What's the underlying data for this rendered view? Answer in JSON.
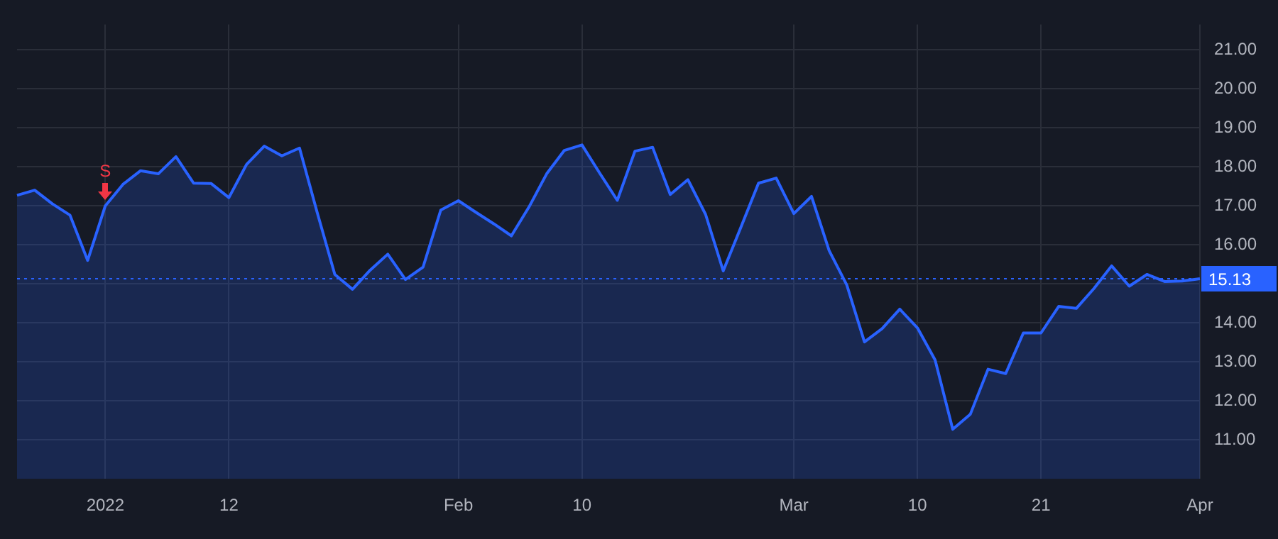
{
  "chart_data": {
    "type": "area",
    "categories": [
      null,
      null,
      null,
      null,
      null,
      "2022",
      null,
      null,
      null,
      null,
      null,
      null,
      "12",
      null,
      null,
      null,
      null,
      null,
      null,
      null,
      null,
      null,
      null,
      null,
      null,
      "Feb",
      null,
      null,
      null,
      null,
      null,
      null,
      "10",
      null,
      null,
      null,
      null,
      null,
      null,
      null,
      null,
      null,
      null,
      null,
      "Mar",
      null,
      null,
      null,
      null,
      null,
      null,
      "10",
      null,
      null,
      null,
      null,
      null,
      null,
      "21",
      null,
      null,
      null,
      null,
      null,
      null,
      null,
      null,
      "Apr"
    ],
    "series": [
      {
        "color": "#2962ff",
        "values": [
          17.27,
          17.4,
          17.05,
          16.76,
          15.6,
          17.0,
          17.55,
          17.9,
          17.82,
          18.26,
          17.58,
          17.57,
          17.21,
          18.06,
          18.53,
          18.28,
          18.48,
          16.83,
          15.24,
          14.86,
          15.35,
          15.76,
          15.11,
          15.43,
          16.89,
          17.13,
          16.83,
          16.54,
          16.23,
          16.97,
          17.82,
          18.42,
          18.56,
          17.84,
          17.14,
          18.4,
          18.5,
          17.29,
          17.67,
          16.78,
          15.33,
          16.45,
          17.58,
          17.71,
          16.8,
          17.24,
          15.85,
          14.97,
          13.51,
          13.85,
          14.35,
          13.87,
          13.05,
          11.27,
          11.66,
          12.81,
          12.7,
          13.74,
          13.74,
          14.42,
          14.37,
          14.88,
          15.46,
          14.94,
          15.24,
          15.06,
          15.07,
          15.13
        ]
      }
    ],
    "ylim": [
      10,
      21.65
    ],
    "yticks": [
      {
        "value": 11,
        "label": "11.00"
      },
      {
        "value": 12,
        "label": "12.00"
      },
      {
        "value": 13,
        "label": "13.00"
      },
      {
        "value": 14,
        "label": "14.00"
      },
      {
        "value": 15,
        "label": null
      },
      {
        "value": 16,
        "label": "16.00"
      },
      {
        "value": 17,
        "label": "17.00"
      },
      {
        "value": 18,
        "label": "18.00"
      },
      {
        "value": 19,
        "label": "19.00"
      },
      {
        "value": 20,
        "label": "20.00"
      },
      {
        "value": 21,
        "label": "21.00"
      }
    ],
    "ref_lines": [
      {
        "axis": "y",
        "value": 15.13,
        "label": "15.13",
        "color": "#2962ff",
        "line_style": "dotted"
      }
    ],
    "annotations": [
      {
        "text": "S",
        "x": "2022",
        "y": 17.0
      }
    ],
    "grid": true,
    "legend": false,
    "marker": "none",
    "line_style": "solid"
  }
}
